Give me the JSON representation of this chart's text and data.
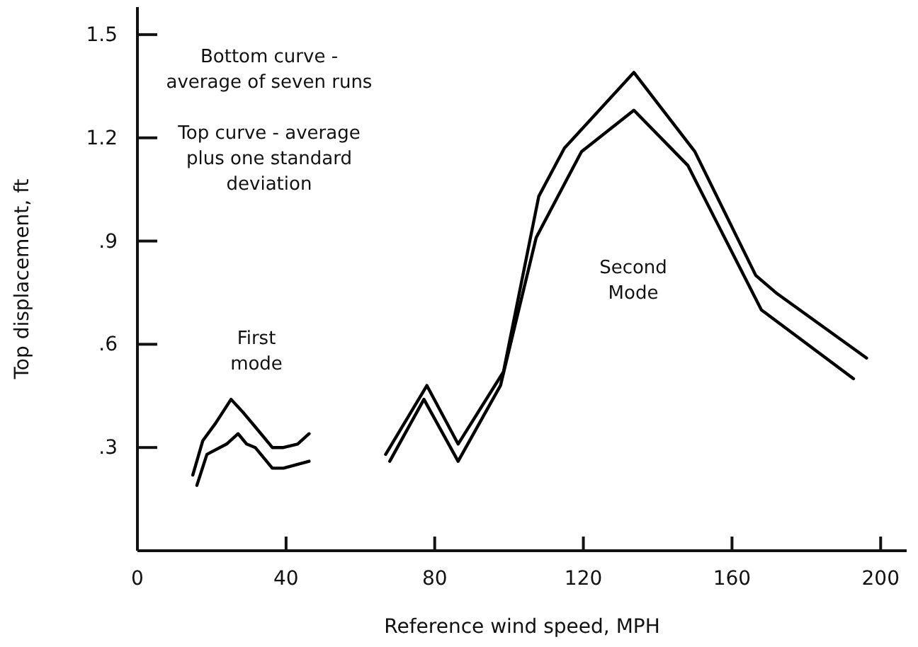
{
  "chart_data": {
    "type": "line",
    "xlabel": "Reference wind speed, MPH",
    "ylabel": "Top displacement, ft",
    "xlim": [
      0,
      207
    ],
    "ylim": [
      0,
      1.58
    ],
    "xticks": [
      0,
      40,
      80,
      120,
      160,
      200
    ],
    "yticks": [
      {
        "value": 0.3,
        "label": ".3"
      },
      {
        "value": 0.6,
        "label": ".6"
      },
      {
        "value": 0.9,
        "label": ".9"
      },
      {
        "value": 1.2,
        "label": "1.2"
      },
      {
        "value": 1.5,
        "label": "1.5"
      }
    ],
    "grid": false,
    "marker": "none",
    "line_style": "solid",
    "annotations": [
      "Bottom curve - average of seven runs",
      "Top curve - average plus one standard deviation",
      "First mode",
      "Second Mode"
    ],
    "series": [
      {
        "color": "#000000",
        "x": [
          14.9,
          17.6,
          21,
          25.2,
          28.6,
          31.7,
          36.3,
          39.3,
          43.1,
          46.2,
          56,
          66.8,
          77.9,
          86.3,
          98.5,
          108,
          114.9,
          133.6,
          150,
          166.4,
          171.8,
          196.2
        ],
        "values": [
          0.22,
          0.32,
          0.37,
          0.44,
          0.4,
          0.36,
          0.3,
          0.3,
          0.31,
          0.34,
          null,
          0.28,
          0.48,
          0.31,
          0.52,
          1.03,
          1.17,
          1.39,
          1.16,
          0.8,
          0.75,
          0.56
        ]
      },
      {
        "color": "#000000",
        "x": [
          16,
          18.7,
          24,
          27.1,
          29.4,
          31.7,
          36.3,
          39.3,
          46.2,
          56,
          67.9,
          77.1,
          86.3,
          97.7,
          107.3,
          119.5,
          133.6,
          148.1,
          167.9,
          192.7
        ],
        "values": [
          0.19,
          0.28,
          0.31,
          0.34,
          0.31,
          0.3,
          0.24,
          0.24,
          0.26,
          null,
          0.26,
          0.44,
          0.26,
          0.48,
          0.91,
          1.16,
          1.28,
          1.12,
          0.7,
          0.5
        ]
      }
    ]
  }
}
